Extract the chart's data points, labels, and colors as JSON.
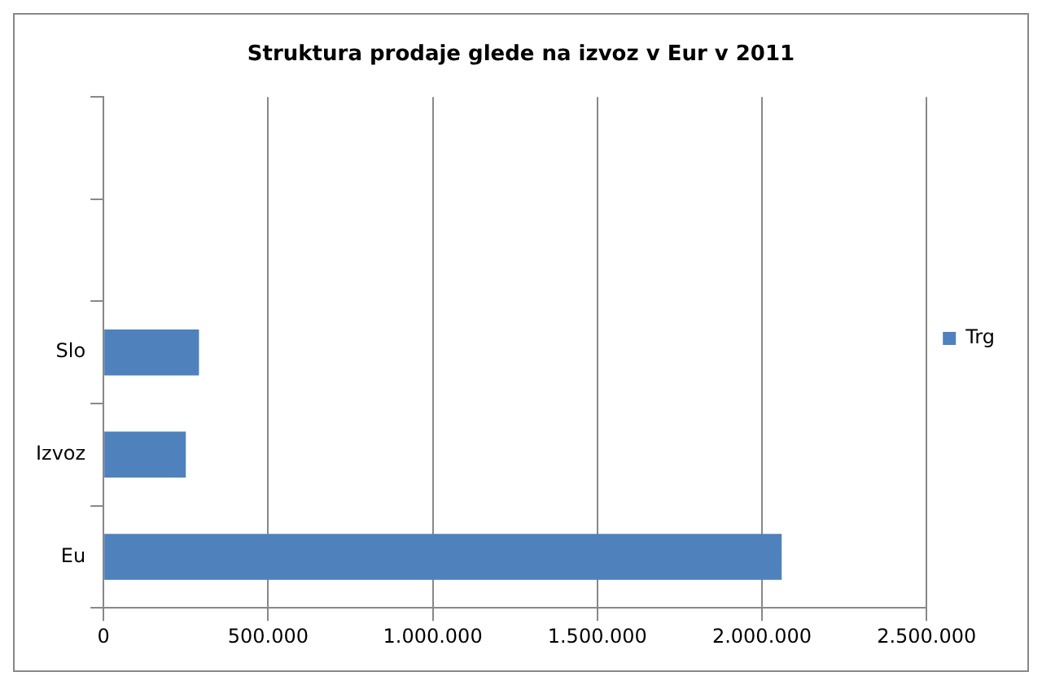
{
  "chart_data": {
    "type": "bar",
    "orientation": "horizontal",
    "title": "Struktura prodaje glede na izvoz v Eur v 2011",
    "categories": [
      null,
      null,
      "Slo",
      "Izvoz",
      "Eu"
    ],
    "series": [
      {
        "name": "Trg",
        "color": "#4f81bd",
        "values": [
          null,
          null,
          290000,
          250000,
          2060000
        ]
      }
    ],
    "xlim": [
      0,
      2500000
    ],
    "xticks": [
      0,
      {
        "value": 500000,
        "label": "500.000"
      },
      {
        "value": 1000000,
        "label": "1.000.000"
      },
      {
        "value": 1500000,
        "label": "1.500.000"
      },
      {
        "value": 2000000,
        "label": "2.000.000"
      },
      {
        "value": 2500000,
        "label": "2.500.000"
      }
    ],
    "grid": "x",
    "legend": "right"
  }
}
